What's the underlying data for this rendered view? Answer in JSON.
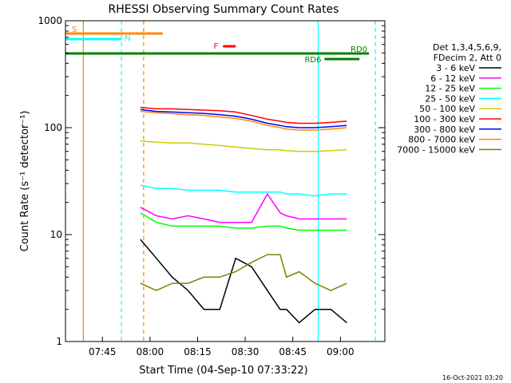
{
  "chart_data": {
    "type": "line",
    "title": "RHESSI Observing Summary Count Rates",
    "xlabel": "Start Time (04-Sep-10 07:33:22)",
    "ylabel": "Count Rate (s⁻¹ detector⁻¹)",
    "yscale": "log",
    "ylim": [
      1,
      1000
    ],
    "xlim": [
      "07:33:22",
      "09:14:00"
    ],
    "x_ticks": [
      "07:45",
      "08:00",
      "08:15",
      "08:30",
      "08:45",
      "09:00"
    ],
    "y_ticks": [
      "1",
      "10",
      "100",
      "1000"
    ],
    "grid": false,
    "legend_position": "right",
    "legend_header": [
      "Det 1,3,4,5,6,9,",
      "FDecim 2, Att 0"
    ],
    "footer_date": "16-Oct-2021 03:20",
    "x_minutes": [
      0,
      5,
      10,
      15,
      20,
      25,
      30,
      35,
      40,
      44,
      46,
      50,
      55,
      60,
      65
    ],
    "series": [
      {
        "name": "3 - 6 keV",
        "color": "#000000",
        "values": [
          9,
          6,
          4,
          3,
          2,
          2,
          6,
          5,
          3,
          2,
          2,
          1.5,
          2,
          2,
          1.5
        ]
      },
      {
        "name": "6 - 12 keV",
        "color": "#ff00ff",
        "values": [
          18,
          15,
          14,
          15,
          14,
          13,
          13,
          13,
          24,
          16,
          15,
          14,
          14,
          14,
          14
        ]
      },
      {
        "name": "12 - 25 keV",
        "color": "#00ff00",
        "values": [
          16,
          13,
          12,
          12,
          12,
          12,
          11.5,
          11.5,
          12,
          12,
          11.5,
          11,
          11,
          11,
          11
        ]
      },
      {
        "name": "25 - 50 keV",
        "color": "#00ffff",
        "values": [
          29,
          27,
          27,
          26,
          26,
          26,
          25,
          25,
          25,
          25,
          24,
          24,
          23,
          24,
          24
        ]
      },
      {
        "name": "50 - 100 keV",
        "color": "#cccc00",
        "values": [
          75,
          73,
          72,
          72,
          70,
          68,
          66,
          64,
          62,
          62,
          61,
          60,
          60,
          61,
          62
        ]
      },
      {
        "name": "100 - 300 keV",
        "color": "#ff0000",
        "values": [
          155,
          150,
          150,
          148,
          146,
          144,
          140,
          130,
          120,
          115,
          112,
          110,
          110,
          112,
          115
        ]
      },
      {
        "name": "300 - 800 keV",
        "color": "#0000ff",
        "values": [
          148,
          142,
          140,
          138,
          136,
          132,
          128,
          120,
          110,
          105,
          102,
          100,
          100,
          102,
          105
        ]
      },
      {
        "name": "800 - 7000 keV",
        "color": "#ff8800",
        "values": [
          142,
          138,
          135,
          132,
          130,
          126,
          122,
          115,
          105,
          100,
          97,
          95,
          95,
          97,
          100
        ]
      },
      {
        "name": "7000 - 15000 keV",
        "color": "#808000",
        "values": [
          3.5,
          3,
          3.5,
          3.5,
          4,
          4,
          4.5,
          5.5,
          6.5,
          6.5,
          4,
          4.5,
          3.5,
          3,
          3.5
        ]
      }
    ],
    "flags": [
      {
        "label": "S",
        "color": "#ff8800",
        "start": "07:33:22",
        "end": "08:04:00"
      },
      {
        "label": "N",
        "color": "#00ffff",
        "start": "07:33:22",
        "end": "07:51:00"
      },
      {
        "label": "F",
        "color": "#ff0000",
        "start": "08:23:00",
        "end": "08:27:00"
      },
      {
        "label": "RD0",
        "color": "#008000",
        "start": "07:33:22",
        "end": "09:09:00"
      },
      {
        "label": "RD6",
        "color": "#008000",
        "start": "08:55:00",
        "end": "09:06:00"
      }
    ],
    "vertical_markers": [
      {
        "time": "07:39:00",
        "color": "#ff8800",
        "style": "solid"
      },
      {
        "time": "07:51:00",
        "color": "#00ffff",
        "style": "dashed"
      },
      {
        "time": "07:58:00",
        "color": "#ff8800",
        "style": "dashed"
      },
      {
        "time": "08:53:00",
        "color": "#00ffff",
        "style": "solid"
      },
      {
        "time": "09:11:00",
        "color": "#00ffff",
        "style": "dashed"
      }
    ]
  }
}
